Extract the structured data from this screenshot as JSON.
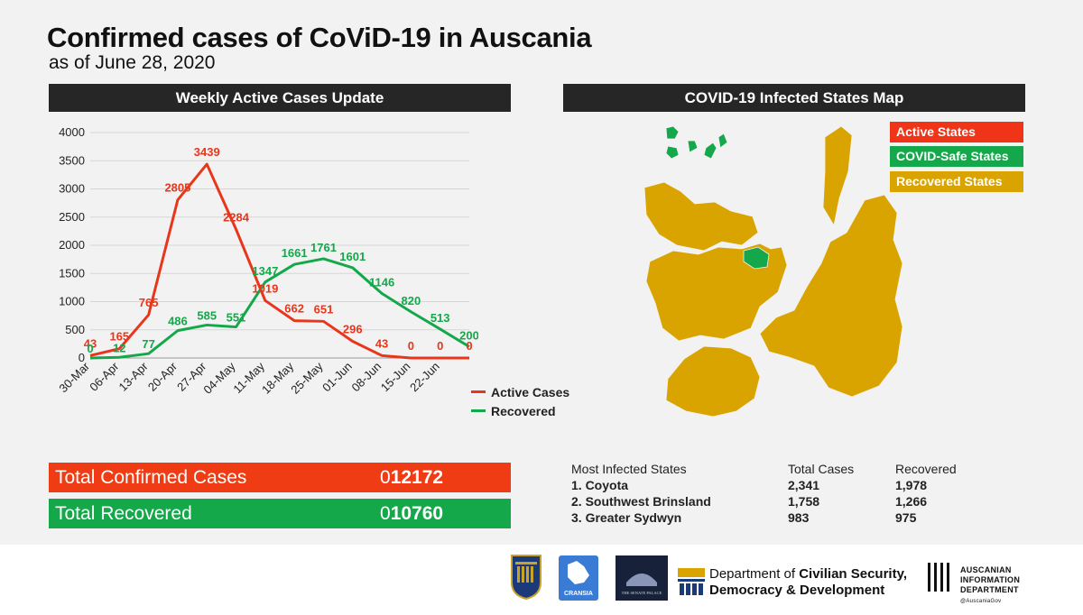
{
  "title": "Confirmed cases of CoViD-19 in Auscania",
  "subtitle": "as of June 28, 2020",
  "left_panel_header": "Weekly Active Cases Update",
  "right_panel_header": "COVID-19 Infected States Map",
  "chart_data": {
    "type": "line",
    "title": "",
    "xlabel": "",
    "ylabel": "",
    "ylim": [
      0,
      4000
    ],
    "yticks": [
      "0",
      "500",
      "1000",
      "1500",
      "2000",
      "2500",
      "3000",
      "3500",
      "4000"
    ],
    "grid": "horizontal",
    "legend_position": "bottom-right",
    "x": [
      "30-Mar",
      "06-Apr",
      "13-Apr",
      "20-Apr",
      "27-Apr",
      "04-May",
      "11-May",
      "18-May",
      "25-May",
      "01-Jun",
      "08-Jun",
      "15-Jun",
      "22-Jun",
      ""
    ],
    "series": [
      {
        "name": "Active Cases",
        "color": "#e8361c",
        "values": [
          43,
          165,
          765,
          2805,
          3439,
          2284,
          1019,
          662,
          651,
          296,
          43,
          0,
          0,
          0
        ]
      },
      {
        "name": "Recovered",
        "color": "#14a84a",
        "values": [
          0,
          12,
          77,
          486,
          585,
          551,
          1347,
          1661,
          1761,
          1601,
          1146,
          820,
          513,
          200
        ]
      }
    ]
  },
  "totals": {
    "confirmed_label": "Total Confirmed Cases",
    "confirmed_lead": "0",
    "confirmed_value": "12172",
    "confirmed_color": "#f03c14",
    "recovered_label": "Total Recovered",
    "recovered_lead": "0",
    "recovered_value": "10760",
    "recovered_color": "#14a84a"
  },
  "map_legend": {
    "active": {
      "label": "Active States",
      "color": "#ef3417"
    },
    "safe": {
      "label": "COVID-Safe States",
      "color": "#14a84a"
    },
    "recovered": {
      "label": "Recovered States",
      "color": "#d9a400"
    }
  },
  "states_table": {
    "headers": [
      "Most Infected States",
      "Total Cases",
      "Recovered"
    ],
    "rows": [
      [
        "1. Coyota",
        "2,341",
        "1,978"
      ],
      [
        "2. Southwest Brinsland",
        "1,758",
        "1,266"
      ],
      [
        "3. Greater Sydwyn",
        "983",
        "975"
      ]
    ]
  },
  "footer": {
    "logo1_icon": "crest-logo",
    "logo2_label": "CRANSIA",
    "logo3_label": "THE SENATE PALACE",
    "dept_line1_plain": "Department of ",
    "dept_line1_bold": "Civilian Security,",
    "dept_line2_bold": "Democracy & Development",
    "aid_line1": "AUSCANIAN",
    "aid_line2": "INFORMATION",
    "aid_line3": "DEPARTMENT",
    "aid_handle": "@AuscaniaGov"
  }
}
